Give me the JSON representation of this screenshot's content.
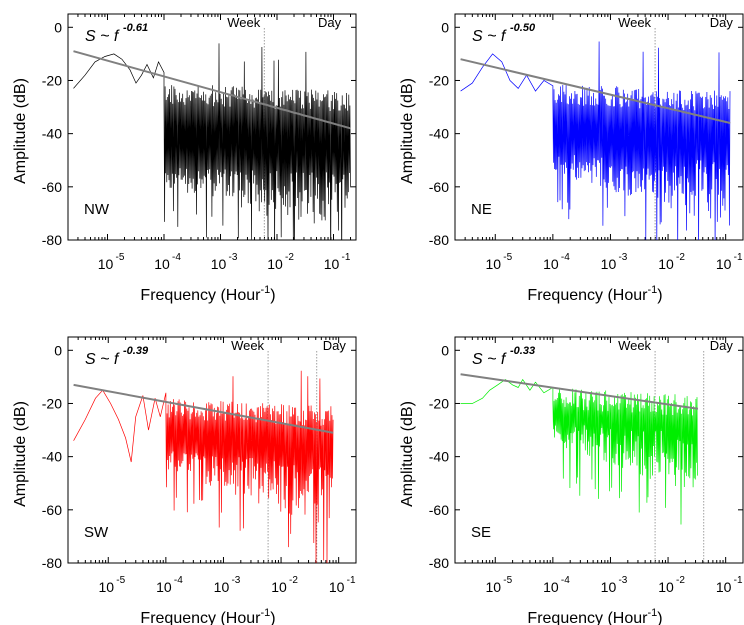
{
  "figure": {
    "chart_data": [
      {
        "type": "line",
        "region": "NW",
        "color": "#000000",
        "fit_label": "S ~ f",
        "fit_exponent": "-0.61",
        "fit_line": {
          "x": [
            2.5e-06,
            0.2
          ],
          "y": [
            -9,
            -38
          ]
        },
        "xlabel": "Frequency (Hour",
        "xlabel_sup": "-1",
        "xlabel_close": ")",
        "ylabel": "Amplitude (dB)",
        "xscale": "log",
        "xlim": [
          2e-06,
          0.25
        ],
        "ylim": [
          -80,
          5
        ],
        "yticks": [
          0,
          -20,
          -40,
          -60,
          -80
        ],
        "xticks": [
          {
            "base": "10",
            "exp": "-5",
            "value": 1e-05
          },
          {
            "base": "10",
            "exp": "-4",
            "value": 0.0001
          },
          {
            "base": "10",
            "exp": "-3",
            "value": 0.001
          },
          {
            "base": "10",
            "exp": "-2",
            "value": 0.01
          },
          {
            "base": "10",
            "exp": "-1",
            "value": 0.1
          }
        ],
        "markers": [
          {
            "label": "Week",
            "x": 0.00595
          },
          {
            "label": "Day",
            "x": 0.04167
          }
        ],
        "show_day_line": false,
        "series_x_max": 0.2,
        "noise_top": -25,
        "noise_bottom": -60,
        "noise_bottom_end": -80,
        "low_freq_points": [
          [
            2.5e-06,
            -23
          ],
          [
            4e-06,
            -18
          ],
          [
            6e-06,
            -13
          ],
          [
            9e-06,
            -11
          ],
          [
            1.3e-05,
            -10
          ],
          [
            1.8e-05,
            -12
          ],
          [
            2.5e-05,
            -16
          ],
          [
            3.2e-05,
            -21
          ],
          [
            4e-05,
            -18
          ],
          [
            5e-05,
            -14
          ],
          [
            6.5e-05,
            -19
          ],
          [
            8e-05,
            -13
          ],
          [
            0.0001,
            -17
          ]
        ],
        "seed": 11
      },
      {
        "type": "line",
        "region": "NE",
        "color": "#0000ff",
        "fit_label": "S ~ f",
        "fit_exponent": "-0.50",
        "fit_line": {
          "x": [
            2.5e-06,
            0.12
          ],
          "y": [
            -12,
            -36
          ]
        },
        "xlabel": "Frequency (Hour",
        "xlabel_sup": "-1",
        "xlabel_close": ")",
        "ylabel": "Amplitude (dB)",
        "xscale": "log",
        "xlim": [
          2e-06,
          0.2
        ],
        "ylim": [
          -80,
          5
        ],
        "yticks": [
          0,
          -20,
          -40,
          -60,
          -80
        ],
        "xticks": [
          {
            "base": "10",
            "exp": "-5",
            "value": 1e-05
          },
          {
            "base": "10",
            "exp": "-4",
            "value": 0.0001
          },
          {
            "base": "10",
            "exp": "-3",
            "value": 0.001
          },
          {
            "base": "10",
            "exp": "-2",
            "value": 0.01
          },
          {
            "base": "10",
            "exp": "-1",
            "value": 0.1
          }
        ],
        "markers": [
          {
            "label": "Week",
            "x": 0.00595
          },
          {
            "label": "Day",
            "x": 0.04167
          }
        ],
        "show_day_line": false,
        "series_x_max": 0.12,
        "noise_top": -25,
        "noise_bottom": -55,
        "noise_bottom_end": -75,
        "low_freq_points": [
          [
            2.5e-06,
            -24
          ],
          [
            4e-06,
            -21
          ],
          [
            6e-06,
            -15
          ],
          [
            9e-06,
            -10
          ],
          [
            1.3e-05,
            -13
          ],
          [
            1.8e-05,
            -20
          ],
          [
            2.5e-05,
            -23
          ],
          [
            3.5e-05,
            -18
          ],
          [
            5e-05,
            -24
          ],
          [
            7e-05,
            -20
          ],
          [
            0.0001,
            -22
          ]
        ],
        "seed": 23
      },
      {
        "type": "line",
        "region": "SW",
        "color": "#ff0000",
        "fit_label": "S ~ f",
        "fit_exponent": "-0.39",
        "fit_line": {
          "x": [
            2.5e-06,
            0.08
          ],
          "y": [
            -13,
            -31
          ]
        },
        "xlabel": "Frequency (Hour",
        "xlabel_sup": "-1",
        "xlabel_close": ")",
        "ylabel": "Amplitude (dB)",
        "xscale": "log",
        "xlim": [
          2e-06,
          0.2
        ],
        "ylim": [
          -80,
          5
        ],
        "yticks": [
          0,
          -20,
          -40,
          -60,
          -80
        ],
        "xticks": [
          {
            "base": "10",
            "exp": "-5",
            "value": 1e-05
          },
          {
            "base": "10",
            "exp": "-4",
            "value": 0.0001
          },
          {
            "base": "10",
            "exp": "-3",
            "value": 0.001
          },
          {
            "base": "10",
            "exp": "-2",
            "value": 0.01
          },
          {
            "base": "10",
            "exp": "-1",
            "value": 0.1
          }
        ],
        "markers": [
          {
            "label": "Week",
            "x": 0.00595
          },
          {
            "label": "Day",
            "x": 0.04167
          }
        ],
        "show_day_line": true,
        "series_x_max": 0.08,
        "noise_top": -22,
        "noise_bottom": -45,
        "noise_bottom_end": -68,
        "low_freq_points": [
          [
            2.5e-06,
            -34
          ],
          [
            4e-06,
            -26
          ],
          [
            6e-06,
            -18
          ],
          [
            8e-06,
            -15
          ],
          [
            1.1e-05,
            -20
          ],
          [
            1.5e-05,
            -26
          ],
          [
            2e-05,
            -33
          ],
          [
            2.5e-05,
            -42
          ],
          [
            3e-05,
            -25
          ],
          [
            4e-05,
            -17
          ],
          [
            5e-05,
            -30
          ],
          [
            6.5e-05,
            -18
          ],
          [
            8e-05,
            -25
          ],
          [
            0.0001,
            -16
          ]
        ],
        "seed": 37
      },
      {
        "type": "line",
        "region": "SE",
        "color": "#00ee00",
        "fit_label": "S ~ f",
        "fit_exponent": "-0.33",
        "fit_line": {
          "x": [
            2.5e-06,
            0.033
          ],
          "y": [
            -9,
            -22
          ]
        },
        "xlabel": "Frequency (Hour",
        "xlabel_sup": "-1",
        "xlabel_close": ")",
        "ylabel": "Amplitude (dB)",
        "xscale": "log",
        "xlim": [
          2e-06,
          0.2
        ],
        "ylim": [
          -80,
          5
        ],
        "yticks": [
          0,
          -20,
          -40,
          -60,
          -80
        ],
        "xticks": [
          {
            "base": "10",
            "exp": "-5",
            "value": 1e-05
          },
          {
            "base": "10",
            "exp": "-4",
            "value": 0.0001
          },
          {
            "base": "10",
            "exp": "-3",
            "value": 0.001
          },
          {
            "base": "10",
            "exp": "-2",
            "value": 0.01
          },
          {
            "base": "10",
            "exp": "-1",
            "value": 0.1
          }
        ],
        "markers": [
          {
            "label": "Week",
            "x": 0.00595
          },
          {
            "label": "Day",
            "x": 0.04167
          }
        ],
        "show_day_line": true,
        "series_x_max": 0.033,
        "noise_top": -18,
        "noise_bottom": -35,
        "noise_bottom_end": -55,
        "low_freq_points": [
          [
            2.5e-06,
            -20
          ],
          [
            4e-06,
            -20
          ],
          [
            6e-06,
            -18
          ],
          [
            8e-06,
            -15
          ],
          [
            1.1e-05,
            -13
          ],
          [
            1.5e-05,
            -11
          ],
          [
            2e-05,
            -13
          ],
          [
            2.5e-05,
            -14
          ],
          [
            3e-05,
            -11
          ],
          [
            4e-05,
            -15
          ],
          [
            5e-05,
            -12
          ],
          [
            7e-05,
            -16
          ],
          [
            0.0001,
            -14
          ]
        ],
        "seed": 51
      }
    ]
  }
}
